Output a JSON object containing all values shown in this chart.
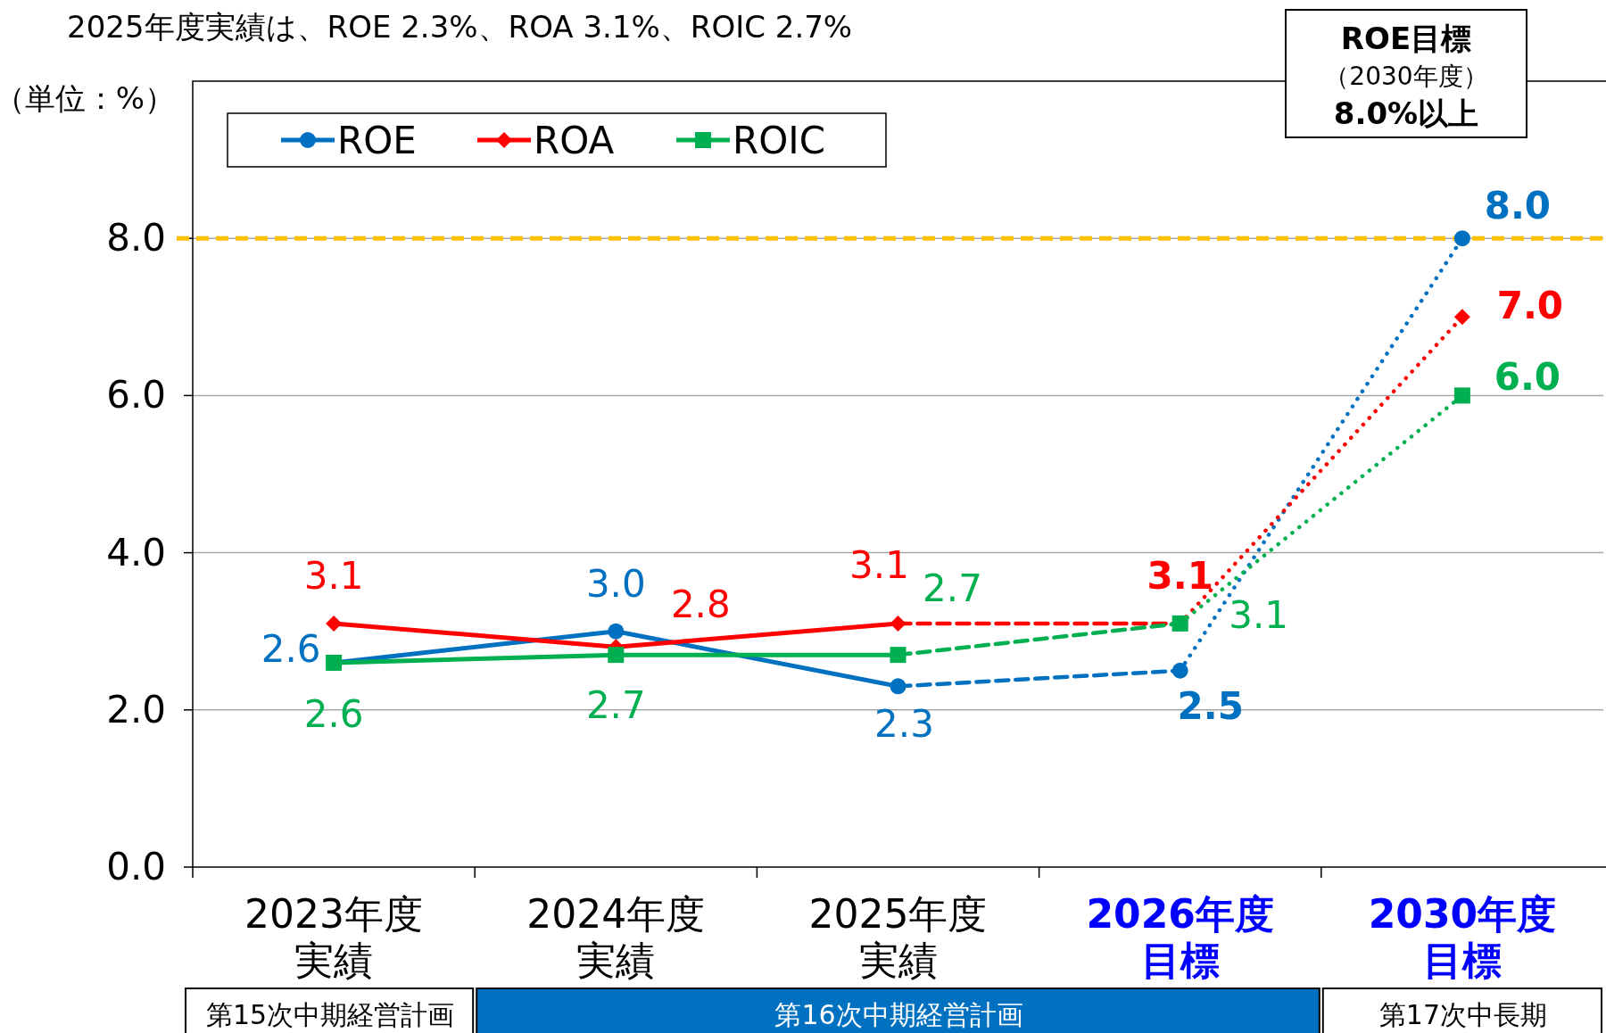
{
  "chart_data": {
    "type": "line",
    "title": "2025年度実績は、ROE 2.3%、ROA 3.1%、ROIC 2.7%",
    "ylabel": "（単位：%）",
    "categories": [
      "2023年度実績",
      "2024年度実績",
      "2025年度実績",
      "2026年度目標",
      "2030年度目標"
    ],
    "ylim": [
      0,
      10
    ],
    "yticks": [
      {
        "value": 0,
        "label": "0.0"
      },
      {
        "value": 2,
        "label": "2.0"
      },
      {
        "value": 4,
        "label": "4.0"
      },
      {
        "value": 6,
        "label": "6.0"
      },
      {
        "value": 8,
        "label": "8.0"
      }
    ],
    "grid": "y",
    "legend": "top left",
    "series": [
      {
        "name": "ROE",
        "color": "#0070c0",
        "values": [
          2.6,
          3.0,
          2.3,
          null,
          null
        ],
        "line_style": "solid",
        "marker": "circle",
        "value_labels": [
          "2.6",
          "3.0",
          "2.3",
          null,
          null
        ]
      },
      {
        "name": "ROA",
        "color": "#ff0000",
        "values": [
          3.1,
          2.8,
          3.1,
          null,
          null
        ],
        "line_style": "solid",
        "marker": "diamond",
        "value_labels": [
          "3.1",
          "2.8",
          "3.1",
          null,
          null
        ]
      },
      {
        "name": "ROIC",
        "color": "#00b050",
        "values": [
          2.6,
          2.7,
          2.7,
          null,
          null
        ],
        "line_style": "solid",
        "marker": "square",
        "value_labels": [
          "2.6",
          "2.7",
          "2.7",
          null,
          null
        ]
      },
      {
        "color": "#0070c0",
        "values": [
          null,
          null,
          2.3,
          2.5,
          null
        ],
        "line_style": "dashed"
      },
      {
        "color": "#ff0000",
        "values": [
          null,
          null,
          3.1,
          3.1,
          null
        ],
        "line_style": "dashed"
      },
      {
        "color": "#00b050",
        "values": [
          null,
          null,
          2.7,
          3.1,
          null
        ],
        "line_style": "dashed"
      },
      {
        "color": "#0070c0",
        "values": [
          null,
          null,
          null,
          2.5,
          8.0
        ],
        "line_style": "dotted",
        "marker": "circle",
        "value_labels": [
          null,
          null,
          null,
          "2.5",
          "8.0"
        ]
      },
      {
        "color": "#ff0000",
        "values": [
          null,
          null,
          null,
          3.1,
          7.0
        ],
        "line_style": "dotted",
        "marker": "diamond",
        "value_labels": [
          null,
          null,
          null,
          "3.1",
          "7.0"
        ]
      },
      {
        "color": "#00b050",
        "values": [
          null,
          null,
          null,
          3.1,
          6.0
        ],
        "line_style": "dotted",
        "marker": "square",
        "value_labels": [
          null,
          null,
          null,
          "3.1",
          "6.0"
        ]
      }
    ],
    "ref_lines": [
      {
        "axis": "y",
        "value": 8.0,
        "color": "#ffc000",
        "line_style": "dashed"
      }
    ],
    "annotations": [
      "ROE目標",
      "（2030年度）",
      "8.0%以上",
      "第15次中期経営計画",
      "第16次中期経営計画",
      "第17次中長期"
    ]
  }
}
